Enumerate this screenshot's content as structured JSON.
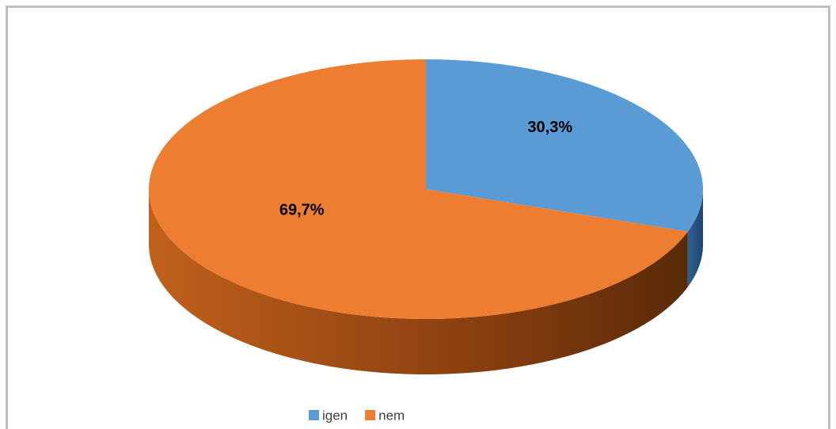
{
  "chart_data": {
    "type": "pie",
    "categories": [
      "igen",
      "nem"
    ],
    "values": [
      30.3,
      69.7
    ],
    "value_labels": [
      "30,3%",
      "69,7%"
    ],
    "colors": [
      "#5b9bd5",
      "#ed7d31"
    ],
    "legend": "bottom"
  }
}
